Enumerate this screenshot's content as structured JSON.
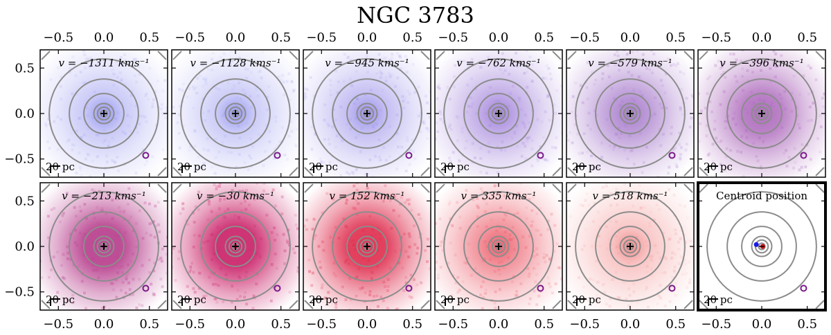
{
  "chart_data": {
    "type": "image-grid",
    "title": "NGC 3783",
    "xlim": [
      -0.7,
      0.7
    ],
    "ylim": [
      -0.7,
      0.7
    ],
    "x_ticks": [
      "−0.5",
      "0.0",
      "0.5"
    ],
    "x_tick_values": [
      -0.5,
      0.0,
      0.5
    ],
    "y_ticks": [
      "0.5",
      "0.0",
      "−0.5"
    ],
    "y_tick_values": [
      0.5,
      0.0,
      -0.5
    ],
    "scale_bar_label": "20 pc",
    "contour_radii": [
      0.035,
      0.07,
      0.11,
      0.22,
      0.38,
      0.6
    ],
    "beam_marker": {
      "x": 0.46,
      "y": -0.46
    },
    "panels": [
      {
        "label": "v = −1311 kms⁻¹",
        "velocity_kms": -1311,
        "tint": "#8888ee",
        "peak_alpha": 0.45,
        "core_alpha": 0.85
      },
      {
        "label": "v = −1128 kms⁻¹",
        "velocity_kms": -1128,
        "tint": "#8888ee",
        "peak_alpha": 0.42,
        "core_alpha": 0.85
      },
      {
        "label": "v = −945 kms⁻¹",
        "velocity_kms": -945,
        "tint": "#8a80e6",
        "peak_alpha": 0.5,
        "core_alpha": 0.85
      },
      {
        "label": "v = −762 kms⁻¹",
        "velocity_kms": -762,
        "tint": "#9a78d8",
        "peak_alpha": 0.6,
        "core_alpha": 0.9
      },
      {
        "label": "v = −579 kms⁻¹",
        "velocity_kms": -579,
        "tint": "#a070c8",
        "peak_alpha": 0.68,
        "core_alpha": 0.9
      },
      {
        "label": "v = −396 kms⁻¹",
        "velocity_kms": -396,
        "tint": "#a860b8",
        "peak_alpha": 0.78,
        "core_alpha": 0.9
      },
      {
        "label": "v = −213 kms⁻¹",
        "velocity_kms": -213,
        "tint": "#b8408e",
        "peak_alpha": 0.92,
        "core_alpha": 0.95
      },
      {
        "label": "v = −30 kms⁻¹",
        "velocity_kms": -30,
        "tint": "#cc2a6e",
        "peak_alpha": 0.95,
        "core_alpha": 0.95
      },
      {
        "label": "v = 152 kms⁻¹",
        "velocity_kms": 152,
        "tint": "#dd2244",
        "peak_alpha": 0.85,
        "core_alpha": 0.9
      },
      {
        "label": "v = 335 kms⁻¹",
        "velocity_kms": 335,
        "tint": "#e83c4c",
        "peak_alpha": 0.55,
        "core_alpha": 0.8
      },
      {
        "label": "v = 518 kms⁻¹",
        "velocity_kms": 518,
        "tint": "#ee6060",
        "peak_alpha": 0.35,
        "core_alpha": 0.7
      },
      {
        "label": "Centroid position",
        "velocity_kms": null,
        "tint": null,
        "peak_alpha": 0,
        "core_alpha": 0
      }
    ],
    "centroids": [
      {
        "series": "blue",
        "color": "#1a1aee",
        "x": -0.06,
        "y": 0.02
      },
      {
        "series": "red",
        "color": "#cc1111",
        "x": 0.01,
        "y": 0.0
      }
    ]
  }
}
